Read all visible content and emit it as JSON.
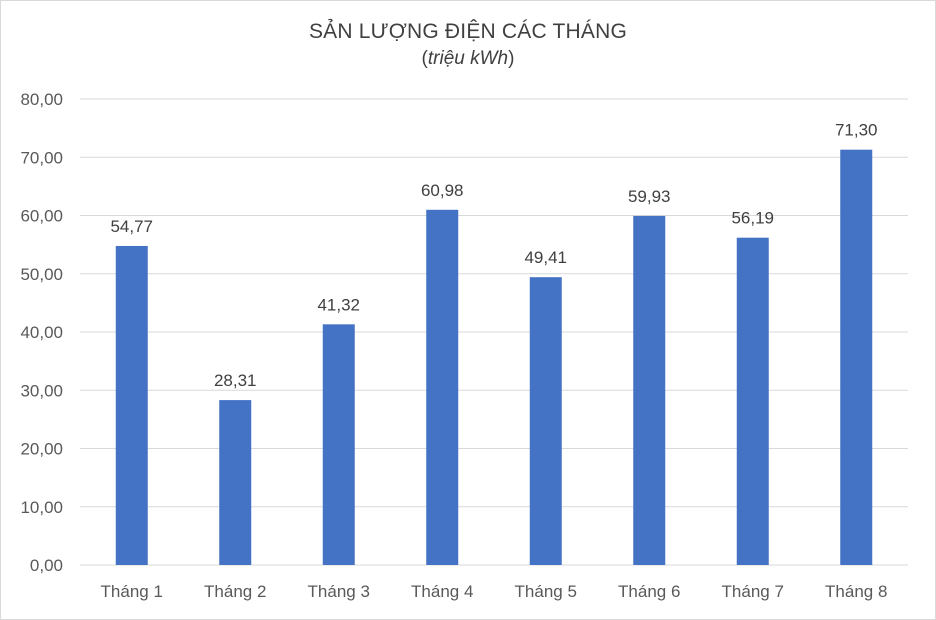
{
  "chart_data": {
    "type": "bar",
    "title": "SẢN LƯỢNG ĐIỆN CÁC THÁNG",
    "subtitle_open": "(",
    "subtitle_unit": "triệu kWh",
    "subtitle_close": ")",
    "categories": [
      "Tháng 1",
      "Tháng 2",
      "Tháng 3",
      "Tháng 4",
      "Tháng 5",
      "Tháng 6",
      "Tháng 7",
      "Tháng 8"
    ],
    "values": [
      54.77,
      28.31,
      41.32,
      60.98,
      49.41,
      59.93,
      56.19,
      71.3
    ],
    "value_labels": [
      "54,77",
      "28,31",
      "41,32",
      "60,98",
      "49,41",
      "59,93",
      "56,19",
      "71,30"
    ],
    "yticks": [
      0,
      10,
      20,
      30,
      40,
      50,
      60,
      70,
      80
    ],
    "ytick_labels": [
      "0,00",
      "10,00",
      "20,00",
      "30,00",
      "40,00",
      "50,00",
      "60,00",
      "70,00",
      "80,00"
    ],
    "ylim": [
      0,
      80
    ],
    "grid": true,
    "legend": "none",
    "bar_color": "#4472C4",
    "grid_color": "#d9d9d9"
  }
}
